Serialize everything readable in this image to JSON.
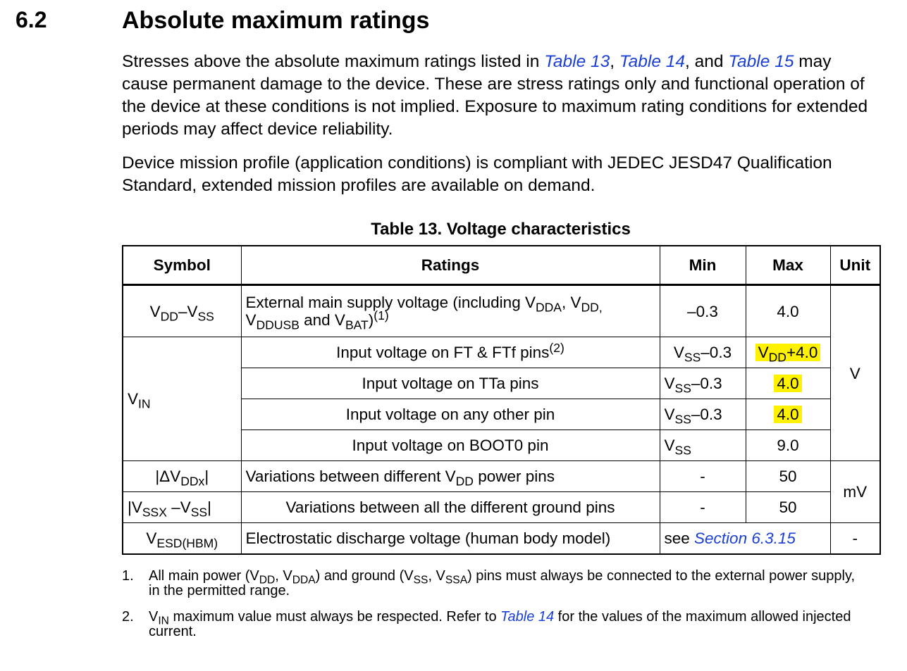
{
  "section": {
    "number": "6.2",
    "title": "Absolute maximum ratings"
  },
  "paragraphs": [
    [
      {
        "text": "Stresses above the absolute maximum ratings listed in "
      },
      {
        "link": "Table 13"
      },
      {
        "text": ", "
      },
      {
        "link": "Table 14"
      },
      {
        "text": ", and "
      },
      {
        "link": "Table 15"
      },
      {
        "text": " may cause permanent damage to the device. These are stress ratings only and functional operation of the device at these conditions is not implied. Exposure to maximum rating conditions for extended periods may affect device reliability."
      }
    ],
    [
      {
        "text": "Device mission profile (application conditions) is compliant with JEDEC JESD47 Qualification Standard, extended mission profiles are available on demand."
      }
    ]
  ],
  "table": {
    "caption": "Table 13. Voltage characteristics",
    "headers": [
      "Symbol",
      "Ratings",
      "Min",
      "Max",
      "Unit"
    ],
    "rows": [
      {
        "cells": [
          {
            "content": [
              {
                "text": "V"
              },
              {
                "sub": "DD"
              },
              {
                "text": "–V"
              },
              {
                "sub": "SS"
              }
            ]
          },
          {
            "content": [
              {
                "text": "External main supply voltage (including V"
              },
              {
                "sub": "DDA"
              },
              {
                "text": ", V"
              },
              {
                "sub": "DD,"
              },
              {
                "text": " V"
              },
              {
                "sub": "DDUSB"
              },
              {
                "text": " and V"
              },
              {
                "sub": "BAT"
              },
              {
                "text": ")"
              },
              {
                "sup": "(1)"
              }
            ]
          },
          {
            "content": [
              {
                "text": "–0.3"
              }
            ]
          },
          {
            "content": [
              {
                "text": "4.0"
              }
            ]
          },
          {
            "content": [
              {
                "text": "V"
              }
            ],
            "rowspan": 5
          }
        ]
      },
      {
        "cells": [
          {
            "content": [
              {
                "text": "V"
              },
              {
                "sub": "IN"
              }
            ],
            "rowspan": 4
          },
          {
            "content": [
              {
                "text": "Input voltage on FT & FTf pins"
              },
              {
                "sup": "(2)"
              }
            ]
          },
          {
            "content": [
              {
                "text": "V"
              },
              {
                "sub": "SS"
              },
              {
                "text": "–0.3"
              }
            ]
          },
          {
            "content": [
              {
                "text": "V"
              },
              {
                "sub": "DD"
              },
              {
                "text": "+4.0"
              }
            ],
            "highlight": true
          }
        ]
      },
      {
        "cells": [
          {
            "content": [
              {
                "text": "Input voltage on TTa pins"
              }
            ]
          },
          {
            "content": [
              {
                "text": "V"
              },
              {
                "sub": "SS"
              },
              {
                "text": "–0.3"
              }
            ]
          },
          {
            "content": [
              {
                "text": "4.0"
              }
            ],
            "highlight": true
          }
        ]
      },
      {
        "cells": [
          {
            "content": [
              {
                "text": "Input voltage on any other pin"
              }
            ]
          },
          {
            "content": [
              {
                "text": "V"
              },
              {
                "sub": "SS"
              },
              {
                "text": "–0.3"
              }
            ]
          },
          {
            "content": [
              {
                "text": "4.0"
              }
            ],
            "highlight": true
          }
        ]
      },
      {
        "cells": [
          {
            "content": [
              {
                "text": "Input voltage on BOOT0 pin"
              }
            ]
          },
          {
            "content": [
              {
                "text": "V"
              },
              {
                "sub": "SS"
              }
            ]
          },
          {
            "content": [
              {
                "text": "9.0"
              }
            ]
          }
        ]
      },
      {
        "cells": [
          {
            "content": [
              {
                "text": "|ΔV"
              },
              {
                "sub": "DDx"
              },
              {
                "text": "|"
              }
            ]
          },
          {
            "content": [
              {
                "text": "Variations between different V"
              },
              {
                "sub": "DD"
              },
              {
                "text": " power pins"
              }
            ]
          },
          {
            "content": [
              {
                "text": "-"
              }
            ]
          },
          {
            "content": [
              {
                "text": "50"
              }
            ]
          },
          {
            "content": [
              {
                "text": "mV"
              }
            ],
            "rowspan": 2
          }
        ]
      },
      {
        "cells": [
          {
            "content": [
              {
                "text": "|V"
              },
              {
                "sub": "SSX"
              },
              {
                "text": " –V"
              },
              {
                "sub": "SS"
              },
              {
                "text": "|"
              }
            ]
          },
          {
            "content": [
              {
                "text": "Variations between all the different ground pins"
              }
            ]
          },
          {
            "content": [
              {
                "text": "-"
              }
            ]
          },
          {
            "content": [
              {
                "text": "50"
              }
            ]
          }
        ]
      },
      {
        "cells": [
          {
            "content": [
              {
                "text": "V"
              },
              {
                "sub": "ESD(HBM)"
              }
            ]
          },
          {
            "content": [
              {
                "text": "Electrostatic discharge voltage (human body model)"
              }
            ]
          },
          {
            "content": [
              {
                "text": "see "
              },
              {
                "link": "Section 6.3.15"
              }
            ],
            "colspan": 2
          },
          {
            "content": [
              {
                "text": "-"
              }
            ]
          }
        ]
      }
    ]
  },
  "footnotes": [
    {
      "number": "1.",
      "text": [
        {
          "text": "All main power (V"
        },
        {
          "sub": "DD"
        },
        {
          "text": ", V"
        },
        {
          "sub": "DDA"
        },
        {
          "text": ") and ground (V"
        },
        {
          "sub": "SS"
        },
        {
          "text": ", V"
        },
        {
          "sub": "SSA"
        },
        {
          "text": ") pins must always be connected to the external power supply, in the permitted range."
        }
      ]
    },
    {
      "number": "2.",
      "text": [
        {
          "text": "V"
        },
        {
          "sub": "IN"
        },
        {
          "text": " maximum value must always be respected. Refer to "
        },
        {
          "link": "Table 14"
        },
        {
          "text": " for the values of the maximum allowed injected current."
        }
      ]
    }
  ]
}
